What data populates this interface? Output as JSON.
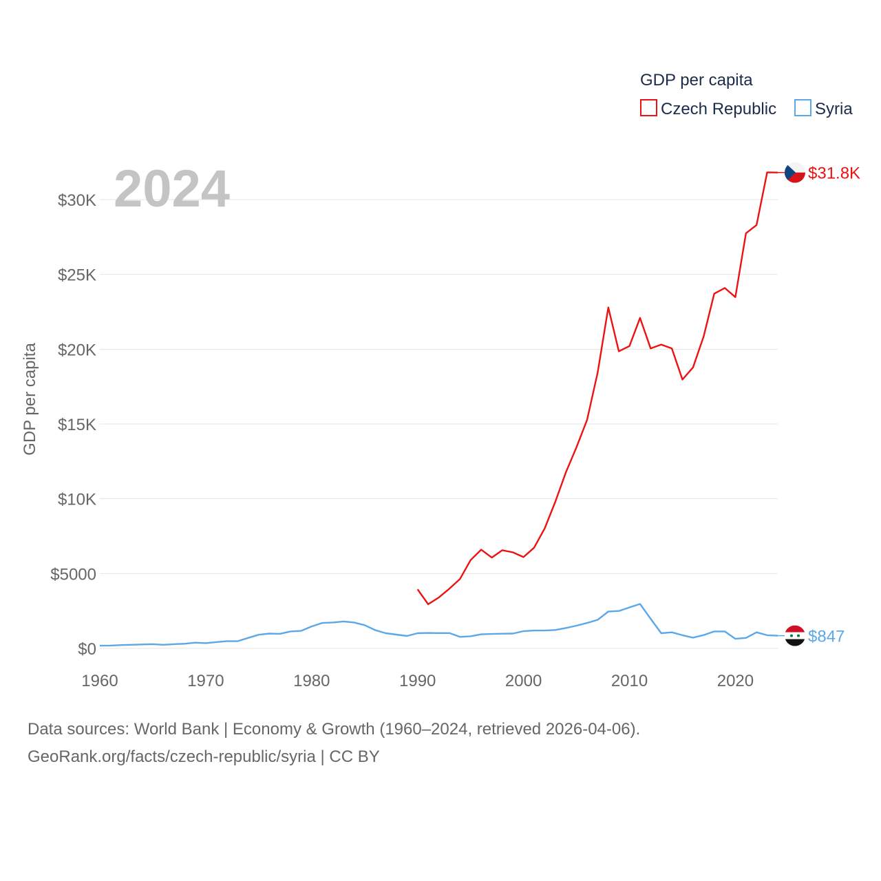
{
  "chart_data": {
    "type": "line",
    "title": "GDP per capita",
    "ylabel": "GDP per capita",
    "xlabel": "",
    "year_label": "2024",
    "xlim": [
      1960,
      2024
    ],
    "ylim": [
      0,
      32000
    ],
    "x_ticks": [
      1960,
      1970,
      1980,
      1990,
      2000,
      2010,
      2020
    ],
    "x_tick_labels": [
      "1960",
      "1970",
      "1980",
      "1990",
      "2000",
      "2010",
      "2020"
    ],
    "y_ticks": [
      0,
      5000,
      10000,
      15000,
      20000,
      25000,
      30000
    ],
    "y_tick_labels": [
      "$0",
      "$5000",
      "$10K",
      "$15K",
      "$20K",
      "$25K",
      "$30K"
    ],
    "grid": true,
    "legend": {
      "position": "top-right",
      "title": "GDP per capita"
    },
    "series": [
      {
        "name": "Czech Republic",
        "color": "#ee1111",
        "end_label": "$31.8K",
        "flag": "czech-flag",
        "x": [
          1990,
          1991,
          1992,
          1993,
          1994,
          1995,
          1996,
          1997,
          1998,
          1999,
          2000,
          2001,
          2002,
          2003,
          2004,
          2005,
          2006,
          2007,
          2008,
          2009,
          2010,
          2011,
          2012,
          2013,
          2014,
          2015,
          2016,
          2017,
          2018,
          2019,
          2020,
          2021,
          2022,
          2023,
          2024
        ],
        "values": [
          3950,
          2950,
          3400,
          3990,
          4640,
          5900,
          6600,
          6070,
          6560,
          6420,
          6100,
          6730,
          8020,
          9800,
          11770,
          13450,
          15280,
          18450,
          22790,
          19860,
          20210,
          22090,
          20050,
          20310,
          20050,
          17970,
          18780,
          20850,
          23710,
          24090,
          23480,
          27750,
          28300,
          31820,
          31810
        ]
      },
      {
        "name": "Syria",
        "color": "#5ba8e8",
        "end_label": "$847",
        "flag": "syria-flag",
        "x": [
          1960,
          1961,
          1962,
          1963,
          1964,
          1965,
          1966,
          1967,
          1968,
          1969,
          1970,
          1971,
          1972,
          1973,
          1974,
          1975,
          1976,
          1977,
          1978,
          1979,
          1980,
          1981,
          1982,
          1983,
          1984,
          1985,
          1986,
          1987,
          1988,
          1989,
          1990,
          1991,
          1992,
          1993,
          1994,
          1995,
          1996,
          1997,
          1998,
          1999,
          2000,
          2001,
          2002,
          2003,
          2004,
          2005,
          2006,
          2007,
          2008,
          2009,
          2010,
          2011,
          2012,
          2013,
          2014,
          2015,
          2016,
          2017,
          2018,
          2019,
          2020,
          2021,
          2022,
          2023,
          2024
        ],
        "values": [
          180,
          190,
          220,
          240,
          260,
          280,
          240,
          280,
          310,
          380,
          350,
          420,
          480,
          480,
          700,
          910,
          990,
          970,
          1130,
          1170,
          1470,
          1700,
          1730,
          1800,
          1730,
          1550,
          1220,
          1010,
          920,
          830,
          1010,
          1030,
          1020,
          1020,
          770,
          810,
          940,
          960,
          980,
          990,
          1150,
          1190,
          1190,
          1230,
          1360,
          1520,
          1700,
          1910,
          2460,
          2500,
          2740,
          2970,
          1980,
          1010,
          1070,
          880,
          720,
          890,
          1130,
          1130,
          640,
          700,
          1070,
          880,
          847
        ]
      }
    ]
  },
  "footer": {
    "source_line": "Data sources: World Bank | Economy & Growth (1960–2024, retrieved 2026-04-06).",
    "url_line": "GeoRank.org/facts/czech-republic/syria | CC BY"
  }
}
